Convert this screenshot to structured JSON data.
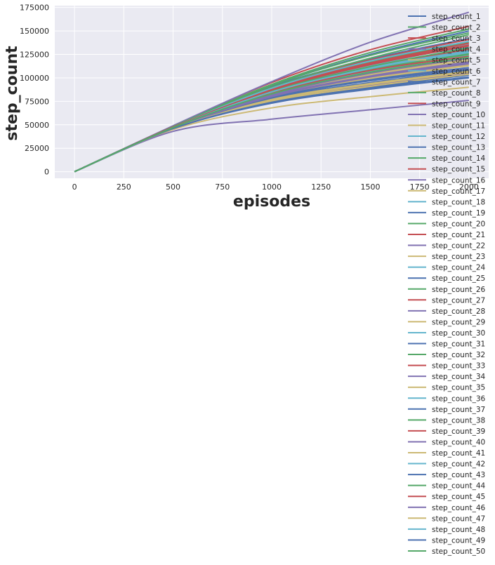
{
  "chart_data": {
    "type": "line",
    "title": "",
    "xlabel": "episodes",
    "ylabel": "step_count",
    "xlim": [
      -100,
      2100
    ],
    "ylim": [
      -7000,
      177000
    ],
    "xticks": [
      0,
      250,
      500,
      750,
      1000,
      1250,
      1500,
      1750,
      2000
    ],
    "yticks": [
      0,
      25000,
      50000,
      75000,
      100000,
      125000,
      150000,
      175000
    ],
    "grid": true,
    "legend_placement": "right",
    "palette": [
      "#4c72b0",
      "#55a868",
      "#c44e52",
      "#8172b2",
      "#ccb974",
      "#64b5cd"
    ],
    "series": [
      {
        "name": "step_count_1",
        "x": [
          0,
          500,
          1000,
          1500,
          2000
        ],
        "y": [
          0,
          48000,
          91000,
          120000,
          142000
        ]
      },
      {
        "name": "step_count_2",
        "x": [
          0,
          500,
          1000,
          1500,
          2000
        ],
        "y": [
          0,
          47000,
          85000,
          110000,
          128000
        ]
      },
      {
        "name": "step_count_3",
        "x": [
          0,
          500,
          1000,
          1500,
          2000
        ],
        "y": [
          0,
          48500,
          95000,
          130000,
          155000
        ]
      },
      {
        "name": "step_count_4",
        "x": [
          0,
          500,
          1000,
          1500,
          2000
        ],
        "y": [
          0,
          46000,
          78000,
          98000,
          110000
        ]
      },
      {
        "name": "step_count_5",
        "x": [
          0,
          500,
          1000,
          1500,
          2000
        ],
        "y": [
          0,
          46500,
          82000,
          104000,
          120000
        ]
      },
      {
        "name": "step_count_6",
        "x": [
          0,
          500,
          1000,
          1500,
          2000
        ],
        "y": [
          0,
          47500,
          88000,
          115000,
          133000
        ]
      },
      {
        "name": "step_count_7",
        "x": [
          0,
          500,
          1000,
          1500,
          2000
        ],
        "y": [
          0,
          48000,
          92000,
          125000,
          150000
        ]
      },
      {
        "name": "step_count_8",
        "x": [
          0,
          500,
          1000,
          1500,
          2000
        ],
        "y": [
          0,
          47000,
          84000,
          108000,
          126000
        ]
      },
      {
        "name": "step_count_9",
        "x": [
          0,
          500,
          1000,
          1500,
          2000
        ],
        "y": [
          0,
          47500,
          86000,
          112000,
          131000
        ]
      },
      {
        "name": "step_count_10",
        "x": [
          0,
          500,
          1000,
          1500,
          2000
        ],
        "y": [
          0,
          49000,
          96000,
          138000,
          170000
        ]
      },
      {
        "name": "step_count_11",
        "x": [
          0,
          500,
          1000,
          1500,
          2000
        ],
        "y": [
          0,
          45000,
          68000,
          80000,
          90000
        ]
      },
      {
        "name": "step_count_12",
        "x": [
          0,
          500,
          1000,
          1500,
          2000
        ],
        "y": [
          0,
          47000,
          87000,
          113000,
          135000
        ]
      },
      {
        "name": "step_count_13",
        "x": [
          0,
          500,
          1000,
          1500,
          2000
        ],
        "y": [
          0,
          46000,
          74000,
          90000,
          103000
        ]
      },
      {
        "name": "step_count_14",
        "x": [
          0,
          500,
          1000,
          1500,
          2000
        ],
        "y": [
          0,
          48000,
          93000,
          127000,
          152000
        ]
      },
      {
        "name": "step_count_15",
        "x": [
          0,
          500,
          1000,
          1500,
          2000
        ],
        "y": [
          0,
          47000,
          85000,
          111000,
          130000
        ]
      },
      {
        "name": "step_count_16",
        "x": [
          0,
          500,
          1000,
          1500,
          2000
        ],
        "y": [
          0,
          46500,
          80000,
          101000,
          116000
        ]
      },
      {
        "name": "step_count_17",
        "x": [
          0,
          500,
          1000,
          1500,
          2000
        ],
        "y": [
          0,
          46000,
          79000,
          99000,
          113000
        ]
      },
      {
        "name": "step_count_18",
        "x": [
          0,
          500,
          1000,
          1500,
          2000
        ],
        "y": [
          0,
          47000,
          86000,
          110000,
          127000
        ]
      },
      {
        "name": "step_count_19",
        "x": [
          0,
          500,
          1000,
          1500,
          2000
        ],
        "y": [
          0,
          46500,
          77000,
          93000,
          106000
        ]
      },
      {
        "name": "step_count_20",
        "x": [
          0,
          500,
          1000,
          1500,
          2000
        ],
        "y": [
          0,
          47500,
          89000,
          117000,
          138000
        ]
      },
      {
        "name": "step_count_21",
        "x": [
          0,
          500,
          1000,
          1500,
          2000
        ],
        "y": [
          0,
          48000,
          90000,
          119000,
          141000
        ]
      },
      {
        "name": "step_count_22",
        "x": [
          0,
          500,
          1000,
          1500,
          2000
        ],
        "y": [
          0,
          46000,
          76000,
          92000,
          105000
        ]
      },
      {
        "name": "step_count_23",
        "x": [
          0,
          500,
          1000,
          1500,
          2000
        ],
        "y": [
          0,
          46500,
          81000,
          103000,
          118000
        ]
      },
      {
        "name": "step_count_24",
        "x": [
          0,
          500,
          1000,
          1500,
          2000
        ],
        "y": [
          0,
          47000,
          84000,
          107000,
          124000
        ]
      },
      {
        "name": "step_count_25",
        "x": [
          0,
          500,
          1000,
          1500,
          2000
        ],
        "y": [
          0,
          46500,
          79000,
          97000,
          109000
        ]
      },
      {
        "name": "step_count_26",
        "x": [
          0,
          500,
          1000,
          1500,
          2000
        ],
        "y": [
          0,
          47500,
          90000,
          121000,
          146000
        ]
      },
      {
        "name": "step_count_27",
        "x": [
          0,
          500,
          1000,
          1500,
          2000
        ],
        "y": [
          0,
          47000,
          87000,
          114000,
          134000
        ]
      },
      {
        "name": "step_count_28",
        "x": [
          0,
          500,
          1000,
          1500,
          2000
        ],
        "y": [
          0,
          46500,
          82000,
          105000,
          121000
        ]
      },
      {
        "name": "step_count_29",
        "x": [
          0,
          500,
          1000,
          1500,
          2000
        ],
        "y": [
          0,
          46000,
          75000,
          91000,
          104000
        ]
      },
      {
        "name": "step_count_30",
        "x": [
          0,
          500,
          1000,
          1500,
          2000
        ],
        "y": [
          0,
          47500,
          88000,
          116000,
          136000
        ]
      },
      {
        "name": "step_count_31",
        "x": [
          0,
          500,
          1000,
          1500,
          2000
        ],
        "y": [
          0,
          46000,
          73000,
          88000,
          100000
        ]
      },
      {
        "name": "step_count_32",
        "x": [
          0,
          500,
          1000,
          1500,
          2000
        ],
        "y": [
          0,
          47000,
          85000,
          109000,
          125000
        ]
      },
      {
        "name": "step_count_33",
        "x": [
          0,
          500,
          1000,
          1500,
          2000
        ],
        "y": [
          0,
          47500,
          88000,
          116000,
          137000
        ]
      },
      {
        "name": "step_count_34",
        "x": [
          0,
          500,
          1000,
          1500,
          2000
        ],
        "y": [
          0,
          43000,
          56000,
          66000,
          76000
        ]
      },
      {
        "name": "step_count_35",
        "x": [
          0,
          500,
          1000,
          1500,
          2000
        ],
        "y": [
          0,
          46500,
          80000,
          100000,
          114000
        ]
      },
      {
        "name": "step_count_36",
        "x": [
          0,
          500,
          1000,
          1500,
          2000
        ],
        "y": [
          0,
          47000,
          86000,
          111000,
          129000
        ]
      },
      {
        "name": "step_count_37",
        "x": [
          0,
          500,
          1000,
          1500,
          2000
        ],
        "y": [
          0,
          46500,
          78000,
          95000,
          108000
        ]
      },
      {
        "name": "step_count_38",
        "x": [
          0,
          500,
          1000,
          1500,
          2000
        ],
        "y": [
          0,
          48000,
          92000,
          124000,
          148000
        ]
      },
      {
        "name": "step_count_39",
        "x": [
          0,
          500,
          1000,
          1500,
          2000
        ],
        "y": [
          0,
          47000,
          84000,
          108000,
          123000
        ]
      },
      {
        "name": "step_count_40",
        "x": [
          0,
          500,
          1000,
          1500,
          2000
        ],
        "y": [
          0,
          46500,
          81000,
          102000,
          117000
        ]
      },
      {
        "name": "step_count_41",
        "x": [
          0,
          500,
          1000,
          1500,
          2000
        ],
        "y": [
          0,
          46000,
          77000,
          94000,
          107000
        ]
      },
      {
        "name": "step_count_42",
        "x": [
          0,
          500,
          1000,
          1500,
          2000
        ],
        "y": [
          0,
          47500,
          89000,
          118000,
          139000
        ]
      },
      {
        "name": "step_count_43",
        "x": [
          0,
          500,
          1000,
          1500,
          2000
        ],
        "y": [
          0,
          46500,
          79000,
          98000,
          111000
        ]
      },
      {
        "name": "step_count_44",
        "x": [
          0,
          500,
          1000,
          1500,
          2000
        ],
        "y": [
          0,
          47000,
          86000,
          112000,
          132000
        ]
      },
      {
        "name": "step_count_45",
        "x": [
          0,
          500,
          1000,
          1500,
          2000
        ],
        "y": [
          0,
          47500,
          87000,
          115000,
          135000
        ]
      },
      {
        "name": "step_count_46",
        "x": [
          0,
          500,
          1000,
          1500,
          2000
        ],
        "y": [
          0,
          46500,
          80000,
          101000,
          115000
        ]
      },
      {
        "name": "step_count_47",
        "x": [
          0,
          500,
          1000,
          1500,
          2000
        ],
        "y": [
          0,
          46000,
          76000,
          93000,
          106000
        ]
      },
      {
        "name": "step_count_48",
        "x": [
          0,
          500,
          1000,
          1500,
          2000
        ],
        "y": [
          0,
          47000,
          85000,
          110000,
          128000
        ]
      },
      {
        "name": "step_count_49",
        "x": [
          0,
          500,
          1000,
          1500,
          2000
        ],
        "y": [
          0,
          46000,
          74000,
          89000,
          101000
        ]
      },
      {
        "name": "step_count_50",
        "x": [
          0,
          500,
          1000,
          1500,
          2000
        ],
        "y": [
          0,
          47000,
          83000,
          106000,
          122000
        ]
      }
    ]
  }
}
